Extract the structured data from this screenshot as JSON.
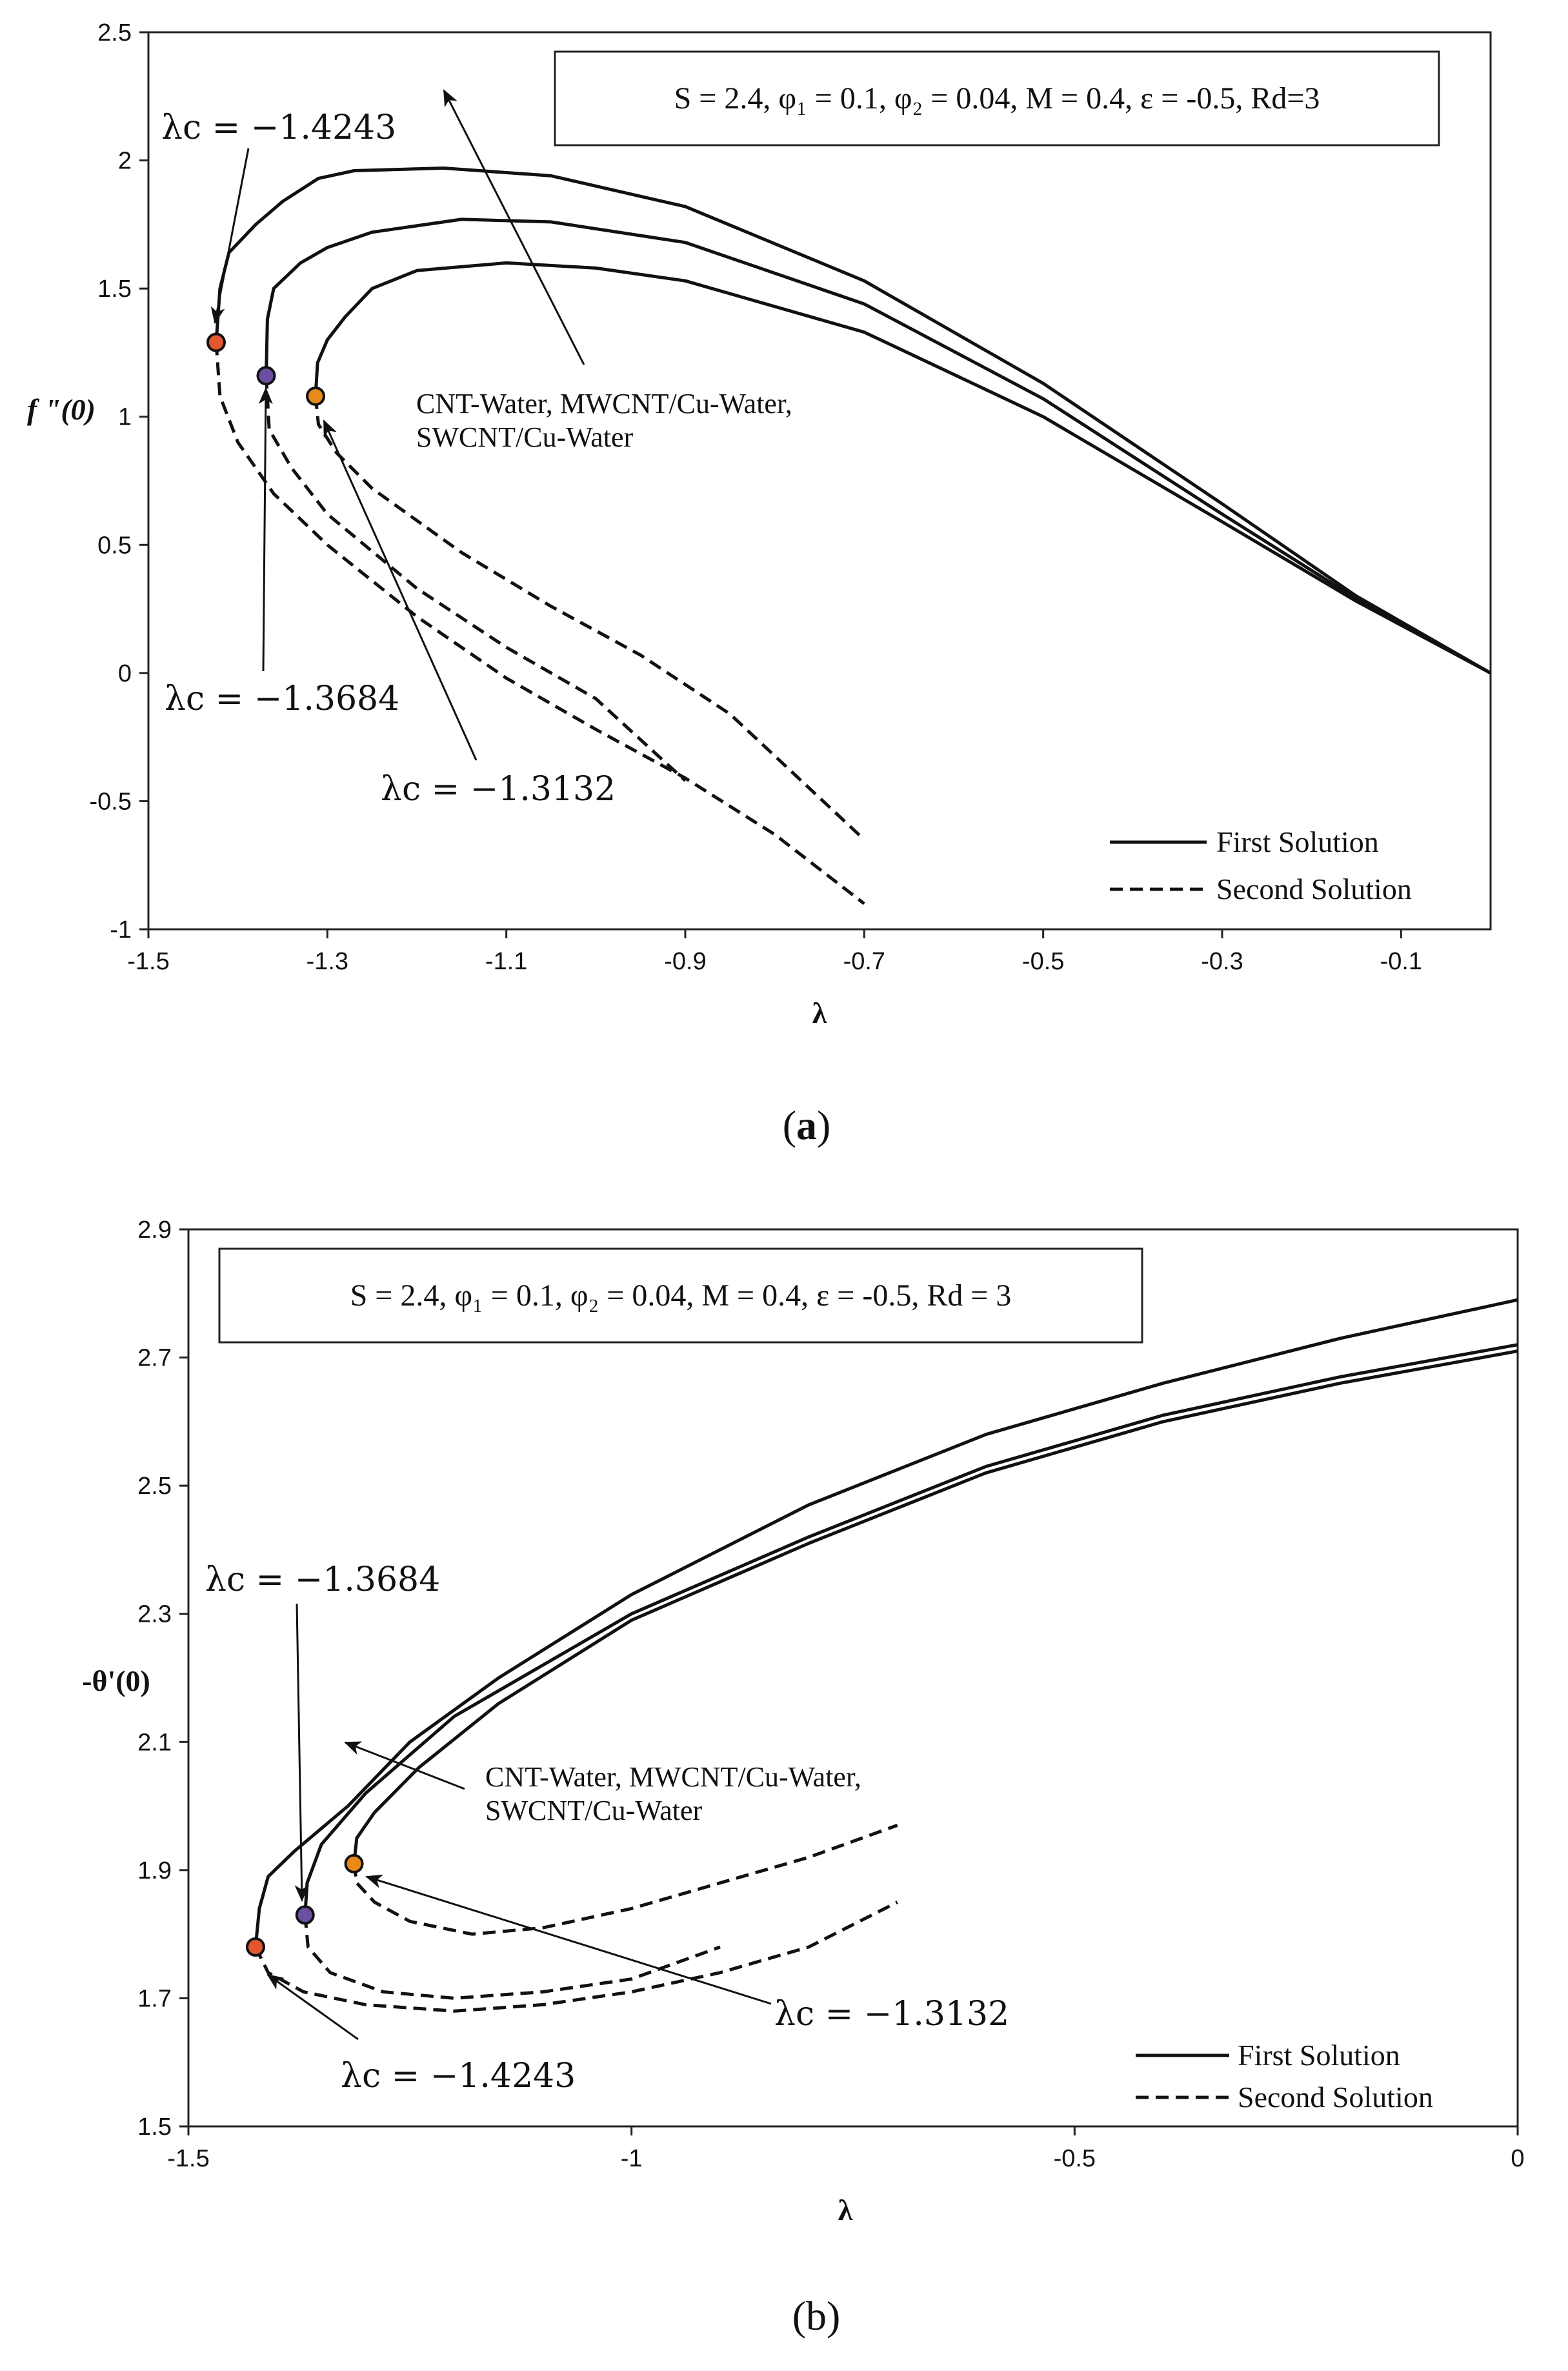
{
  "chart_data": [
    {
      "panel": "a",
      "type": "line",
      "caption_label": "a",
      "xlabel": "λ",
      "ylabel": "f \"(0)",
      "xlim": [
        -1.5,
        0.0
      ],
      "ylim": [
        -1,
        2.5
      ],
      "xticks": [
        -1.5,
        -1.3,
        -1.1,
        -0.9,
        -0.7,
        -0.5,
        -0.3,
        -0.1
      ],
      "xtick_labels": [
        "-1.5",
        "-1.3",
        "-1.1",
        "-0.9",
        "-0.7",
        "-0.5",
        "-0.3",
        "-0.1"
      ],
      "yticks": [
        -1,
        -0.5,
        0,
        0.5,
        1,
        1.5,
        2,
        2.5
      ],
      "ytick_labels": [
        "-1",
        "-0.5",
        "0",
        "0.5",
        "1",
        "1.5",
        "2",
        "2.5"
      ],
      "params": {
        "S": "2.4",
        "phi1": "0.1",
        "phi2": "0.04",
        "M": "0.4",
        "eps": "-0.5",
        "Rd": "3"
      },
      "param_text": "S = 2.4, φ₁ = 0.1, φ₂ = 0.04, M = 0.4, ε = -0.5, Rd=3",
      "legend": [
        {
          "label": "First Solution",
          "style": "solid"
        },
        {
          "label": "Second Solution",
          "style": "dashed"
        }
      ],
      "legend_position": "bottom-right",
      "fluids_label_line1": "CNT-Water, MWCNT/Cu-Water,",
      "fluids_label_line2": "SWCNT/Cu-Water",
      "critical_labels": [
        "λc = −1.4243",
        "λc = −1.3684",
        "λc = −1.3132"
      ],
      "critical_points": [
        {
          "x": -1.4243,
          "y": 1.29,
          "color": "#e4572e"
        },
        {
          "x": -1.3684,
          "y": 1.16,
          "color": "#6b4fa0"
        },
        {
          "x": -1.3132,
          "y": 1.08,
          "color": "#e8891a"
        }
      ],
      "series": [
        {
          "name": "First Solution (upper curve)",
          "style": "solid",
          "points": [
            [
              -1.4243,
              1.29
            ],
            [
              -1.42,
              1.5
            ],
            [
              -1.41,
              1.64
            ],
            [
              -1.38,
              1.75
            ],
            [
              -1.35,
              1.84
            ],
            [
              -1.31,
              1.93
            ],
            [
              -1.27,
              1.96
            ],
            [
              -1.17,
              1.97
            ],
            [
              -1.05,
              1.94
            ],
            [
              -0.9,
              1.82
            ],
            [
              -0.7,
              1.53
            ],
            [
              -0.5,
              1.13
            ],
            [
              -0.3,
              0.66
            ],
            [
              -0.15,
              0.3
            ],
            [
              0.0,
              0.0
            ]
          ]
        },
        {
          "name": "First Solution (middle curve)",
          "style": "solid",
          "points": [
            [
              -1.3684,
              1.16
            ],
            [
              -1.367,
              1.38
            ],
            [
              -1.36,
              1.5
            ],
            [
              -1.33,
              1.6
            ],
            [
              -1.3,
              1.66
            ],
            [
              -1.25,
              1.72
            ],
            [
              -1.15,
              1.77
            ],
            [
              -1.05,
              1.76
            ],
            [
              -0.9,
              1.68
            ],
            [
              -0.7,
              1.44
            ],
            [
              -0.5,
              1.07
            ],
            [
              -0.3,
              0.62
            ],
            [
              -0.15,
              0.29
            ],
            [
              0.0,
              0.0
            ]
          ]
        },
        {
          "name": "First Solution (lower curve)",
          "style": "solid",
          "points": [
            [
              -1.3132,
              1.08
            ],
            [
              -1.311,
              1.21
            ],
            [
              -1.3,
              1.3
            ],
            [
              -1.28,
              1.39
            ],
            [
              -1.25,
              1.5
            ],
            [
              -1.2,
              1.57
            ],
            [
              -1.1,
              1.6
            ],
            [
              -1.0,
              1.58
            ],
            [
              -0.9,
              1.53
            ],
            [
              -0.7,
              1.33
            ],
            [
              -0.5,
              1.0
            ],
            [
              -0.3,
              0.59
            ],
            [
              -0.15,
              0.28
            ],
            [
              0.0,
              0.0
            ]
          ]
        },
        {
          "name": "Second Solution (curve 1)",
          "style": "dashed",
          "points": [
            [
              -1.4243,
              1.29
            ],
            [
              -1.42,
              1.08
            ],
            [
              -1.4,
              0.9
            ],
            [
              -1.36,
              0.7
            ],
            [
              -1.3,
              0.5
            ],
            [
              -1.2,
              0.22
            ],
            [
              -1.1,
              -0.02
            ],
            [
              -1.0,
              -0.22
            ],
            [
              -0.9,
              -0.41
            ],
            [
              -0.8,
              -0.63
            ],
            [
              -0.7,
              -0.9
            ]
          ]
        },
        {
          "name": "Second Solution (curve 2)",
          "style": "dashed",
          "points": [
            [
              -1.3684,
              1.16
            ],
            [
              -1.365,
              0.95
            ],
            [
              -1.34,
              0.8
            ],
            [
              -1.3,
              0.62
            ],
            [
              -1.2,
              0.33
            ],
            [
              -1.1,
              0.1
            ],
            [
              -1.0,
              -0.1
            ],
            [
              -0.9,
              -0.42
            ]
          ]
        },
        {
          "name": "Second Solution (curve 3)",
          "style": "dashed",
          "points": [
            [
              -1.3132,
              1.08
            ],
            [
              -1.31,
              0.97
            ],
            [
              -1.29,
              0.86
            ],
            [
              -1.25,
              0.72
            ],
            [
              -1.15,
              0.47
            ],
            [
              -1.05,
              0.26
            ],
            [
              -0.95,
              0.07
            ],
            [
              -0.85,
              -0.16
            ],
            [
              -0.7,
              -0.65
            ]
          ]
        }
      ]
    },
    {
      "panel": "b",
      "type": "line",
      "caption_label": "b",
      "xlabel": "λ",
      "ylabel": "-θ'(0)",
      "xlim": [
        -1.5,
        0.0
      ],
      "ylim": [
        1.5,
        2.9
      ],
      "xticks": [
        -1.5,
        -1.0,
        -0.5,
        0.0
      ],
      "xtick_labels": [
        "-1.5",
        "-1",
        "-0.5",
        "0"
      ],
      "yticks": [
        1.5,
        1.7,
        1.9,
        2.1,
        2.3,
        2.5,
        2.7,
        2.9
      ],
      "ytick_labels": [
        "1.5",
        "1.7",
        "1.9",
        "2.1",
        "2.3",
        "2.5",
        "2.7",
        "2.9"
      ],
      "params": {
        "S": "2.4",
        "phi1": "0.1",
        "phi2": "0.04",
        "M": "0.4",
        "eps": "-0.5",
        "Rd": "3"
      },
      "param_text": "S = 2.4, φ₁ = 0.1, φ₂ = 0.04, M = 0.4, ε = -0.5, Rd = 3",
      "legend": [
        {
          "label": "First Solution",
          "style": "solid"
        },
        {
          "label": "Second Solution",
          "style": "dashed"
        }
      ],
      "legend_position": "bottom-right",
      "fluids_label_line1": "CNT-Water, MWCNT/Cu-Water,",
      "fluids_label_line2": "SWCNT/Cu-Water",
      "critical_labels": [
        "λc = −1.3684",
        "λc = −1.3132",
        "λc = −1.4243"
      ],
      "critical_points": [
        {
          "x": -1.4243,
          "y": 1.78,
          "color": "#e4572e"
        },
        {
          "x": -1.3684,
          "y": 1.83,
          "color": "#6b4fa0"
        },
        {
          "x": -1.3132,
          "y": 1.91,
          "color": "#e8891a"
        }
      ],
      "series": [
        {
          "name": "First Solution (upper curve)",
          "style": "solid",
          "points": [
            [
              -1.4243,
              1.78
            ],
            [
              -1.42,
              1.84
            ],
            [
              -1.41,
              1.89
            ],
            [
              -1.38,
              1.93
            ],
            [
              -1.32,
              2.0
            ],
            [
              -1.25,
              2.1
            ],
            [
              -1.15,
              2.2
            ],
            [
              -1.0,
              2.33
            ],
            [
              -0.8,
              2.47
            ],
            [
              -0.6,
              2.58
            ],
            [
              -0.4,
              2.66
            ],
            [
              -0.2,
              2.73
            ],
            [
              0.0,
              2.79
            ]
          ]
        },
        {
          "name": "First Solution (middle curve)",
          "style": "solid",
          "points": [
            [
              -1.3684,
              1.83
            ],
            [
              -1.366,
              1.88
            ],
            [
              -1.35,
              1.94
            ],
            [
              -1.3,
              2.02
            ],
            [
              -1.2,
              2.14
            ],
            [
              -1.0,
              2.3
            ],
            [
              -0.8,
              2.42
            ],
            [
              -0.6,
              2.53
            ],
            [
              -0.4,
              2.61
            ],
            [
              -0.2,
              2.67
            ],
            [
              0.0,
              2.72
            ]
          ]
        },
        {
          "name": "First Solution (lower curve)",
          "style": "solid",
          "points": [
            [
              -1.3132,
              1.91
            ],
            [
              -1.31,
              1.95
            ],
            [
              -1.29,
              1.99
            ],
            [
              -1.24,
              2.06
            ],
            [
              -1.15,
              2.16
            ],
            [
              -1.0,
              2.29
            ],
            [
              -0.8,
              2.41
            ],
            [
              -0.6,
              2.52
            ],
            [
              -0.4,
              2.6
            ],
            [
              -0.2,
              2.66
            ],
            [
              0.0,
              2.71
            ]
          ]
        },
        {
          "name": "Second Solution (curve 1)",
          "style": "dashed",
          "points": [
            [
              -1.4243,
              1.78
            ],
            [
              -1.41,
              1.74
            ],
            [
              -1.37,
              1.71
            ],
            [
              -1.3,
              1.69
            ],
            [
              -1.2,
              1.68
            ],
            [
              -1.1,
              1.69
            ],
            [
              -1.0,
              1.71
            ],
            [
              -0.9,
              1.74
            ],
            [
              -0.8,
              1.78
            ],
            [
              -0.7,
              1.85
            ]
          ]
        },
        {
          "name": "Second Solution (curve 2)",
          "style": "dashed",
          "points": [
            [
              -1.3684,
              1.83
            ],
            [
              -1.365,
              1.78
            ],
            [
              -1.34,
              1.74
            ],
            [
              -1.28,
              1.71
            ],
            [
              -1.2,
              1.7
            ],
            [
              -1.1,
              1.71
            ],
            [
              -1.0,
              1.73
            ],
            [
              -0.9,
              1.78
            ]
          ]
        },
        {
          "name": "Second Solution (curve 3)",
          "style": "dashed",
          "points": [
            [
              -1.3132,
              1.91
            ],
            [
              -1.31,
              1.88
            ],
            [
              -1.29,
              1.85
            ],
            [
              -1.25,
              1.82
            ],
            [
              -1.18,
              1.8
            ],
            [
              -1.1,
              1.81
            ],
            [
              -1.0,
              1.84
            ],
            [
              -0.9,
              1.88
            ],
            [
              -0.8,
              1.92
            ],
            [
              -0.7,
              1.97
            ]
          ]
        }
      ]
    }
  ]
}
